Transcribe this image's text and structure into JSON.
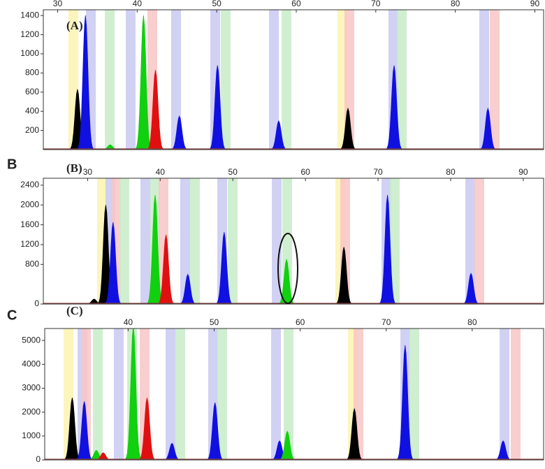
{
  "chart_data": [
    {
      "type": "peak",
      "label": "(A)",
      "xlim": [
        28.2,
        91.1
      ],
      "xticks": [
        30,
        40,
        50,
        60,
        70,
        80,
        90
      ],
      "ylim": [
        0,
        1460
      ],
      "yticks": [
        200,
        400,
        600,
        800,
        1000,
        1200,
        1400
      ],
      "series": [
        {
          "color": "#000000",
          "x": [
            32.5,
            66.5
          ],
          "values": [
            630,
            430
          ]
        },
        {
          "color": "#1010e0",
          "x": [
            33.5,
            45.3,
            50.1,
            57.8,
            72.3,
            84.1
          ],
          "values": [
            1400,
            350,
            880,
            300,
            880,
            430
          ]
        },
        {
          "color": "#10d010",
          "x": [
            36.6,
            40.8
          ],
          "values": [
            50,
            1400
          ]
        },
        {
          "color": "#e01010",
          "x": [
            42.3
          ],
          "values": [
            830
          ]
        }
      ]
    },
    {
      "type": "peak",
      "label": "(B)",
      "panel_letter": "B",
      "xlim": [
        23.9,
        92.8
      ],
      "xticks": [
        30,
        40,
        50,
        60,
        70,
        80,
        90
      ],
      "ylim": [
        0,
        2540
      ],
      "yticks": [
        0,
        800,
        1200,
        1600,
        2000,
        2400
      ],
      "series": [
        {
          "color": "#000000",
          "x": [
            30.9,
            32.5,
            65.3
          ],
          "values": [
            100,
            2000,
            1150
          ]
        },
        {
          "color": "#1010e0",
          "x": [
            33.5,
            43.8,
            48.8,
            71.3,
            82.8
          ],
          "values": [
            1650,
            600,
            1450,
            2200,
            620
          ]
        },
        {
          "color": "#10d010",
          "x": [
            39.3,
            57.4
          ],
          "values": [
            2200,
            900
          ]
        },
        {
          "color": "#e01010",
          "x": [
            40.8
          ],
          "values": [
            1400
          ]
        }
      ]
    },
    {
      "type": "peak",
      "label": "(C)",
      "panel_letter": "C",
      "xlim": [
        30.3,
        88.3
      ],
      "xticks": [
        40,
        50,
        60,
        70,
        80
      ],
      "ylim": [
        0,
        5500
      ],
      "yticks": [
        0,
        1000,
        2000,
        3000,
        4000,
        5000
      ],
      "series": [
        {
          "color": "#000000",
          "x": [
            33.5,
            66.3
          ],
          "values": [
            2600,
            2150
          ]
        },
        {
          "color": "#1010e0",
          "x": [
            34.9,
            45.1,
            50.1,
            57.6,
            72.2,
            83.6
          ],
          "values": [
            2450,
            700,
            2400,
            800,
            4800,
            800
          ]
        },
        {
          "color": "#10d010",
          "x": [
            36.3,
            40.6,
            58.5
          ],
          "values": [
            400,
            5600,
            1200
          ]
        },
        {
          "color": "#e01010",
          "x": [
            37.1,
            42.2
          ],
          "values": [
            300,
            2600
          ]
        }
      ]
    }
  ]
}
